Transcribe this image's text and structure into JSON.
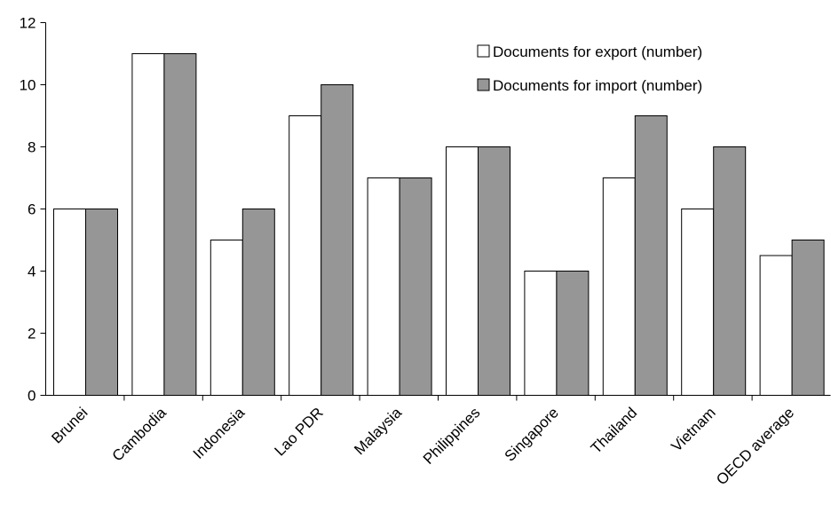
{
  "chart_data": {
    "type": "bar",
    "categories": [
      "Brunei",
      "Cambodia",
      "Indonesia",
      "Lao PDR",
      "Malaysia",
      "Philippines",
      "Singapore",
      "Thailand",
      "Vietnam",
      "OECD average"
    ],
    "series": [
      {
        "name": "Documents for export (number)",
        "values": [
          6,
          11,
          5,
          9,
          7,
          8,
          4,
          7,
          6,
          4.5
        ],
        "color": "#ffffff"
      },
      {
        "name": "Documents for import (number)",
        "values": [
          6,
          11,
          6,
          10,
          7,
          8,
          4,
          9,
          8,
          5
        ],
        "color": "#969696"
      }
    ],
    "yticks": [
      0,
      2,
      4,
      6,
      8,
      10,
      12
    ],
    "ylim": [
      0,
      12
    ],
    "grid": false,
    "legend_position": "top-right",
    "title": "",
    "xlabel": "",
    "ylabel": ""
  }
}
